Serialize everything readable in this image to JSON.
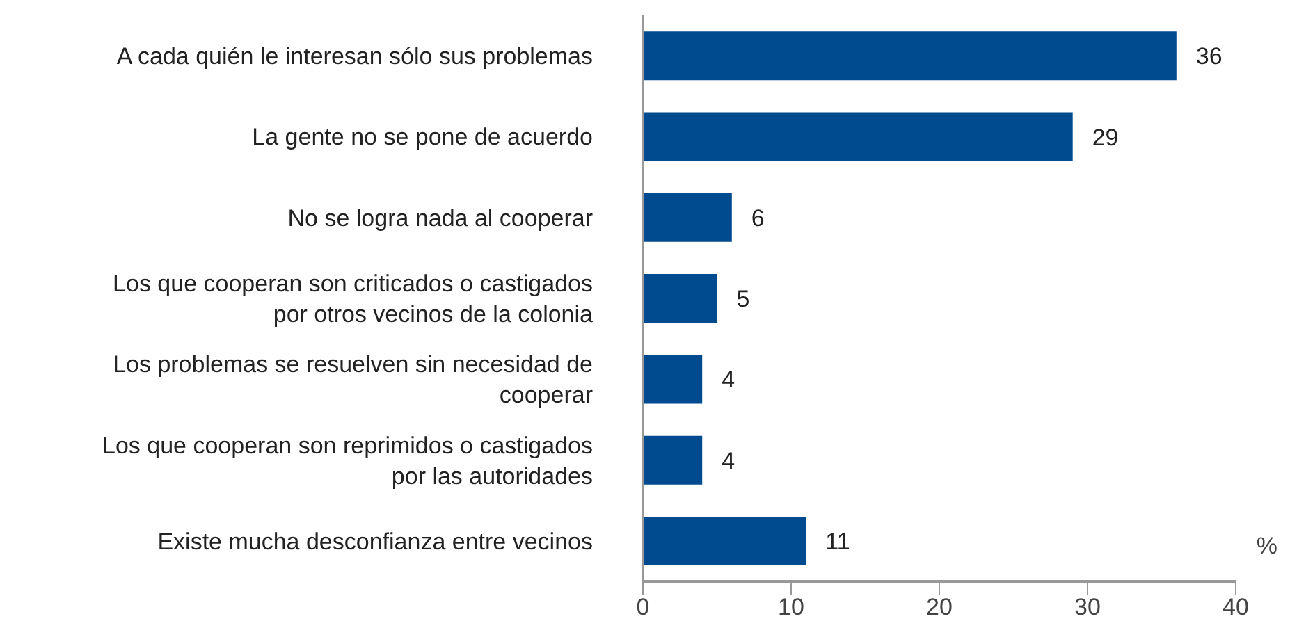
{
  "chart_data": {
    "type": "bar",
    "orientation": "horizontal",
    "xlabel": "%",
    "categories": [
      "A cada quién le interesan sólo sus problemas",
      "La gente no se pone de acuerdo",
      "No se logra nada al cooperar",
      "Los que cooperan son criticados o castigados por otros vecinos de la colonia",
      "Los problemas se resuelven sin necesidad de cooperar",
      "Los que cooperan son reprimidos o castigados por las autoridades",
      "Existe mucha desconfianza entre vecinos"
    ],
    "values": [
      36,
      29,
      6,
      5,
      4,
      4,
      11
    ],
    "color": "#004a8f",
    "xlim": [
      0,
      40
    ],
    "xticks": [
      0,
      10,
      20,
      30,
      40
    ],
    "grid": false,
    "data_labels": true
  }
}
